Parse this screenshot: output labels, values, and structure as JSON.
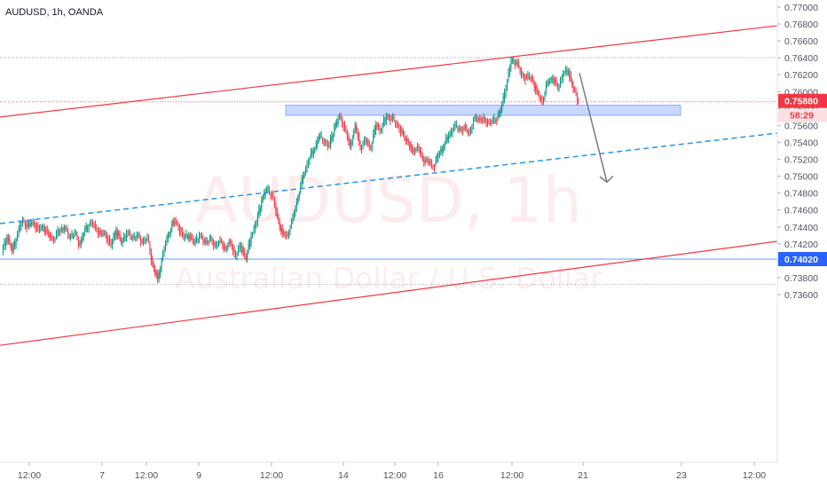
{
  "chart_data": {
    "type": "candlestick",
    "symbol_title": "AUDUSD, 1h, OANDA",
    "watermark_symbol": "AUDUSD, 1h",
    "watermark_description": "Australian Dollar / U.S. Dollar",
    "y_axis": {
      "min": 0.736,
      "max": 0.778,
      "ticks": [
        "0.77000",
        "0.76800",
        "0.76600",
        "0.76400",
        "0.76200",
        "0.76000",
        "0.75800",
        "0.75600",
        "0.75400",
        "0.75200",
        "0.75000",
        "0.74800",
        "0.74600",
        "0.74400",
        "0.74200",
        "0.74000",
        "0.73800",
        "0.73600"
      ]
    },
    "x_axis": {
      "ticks": [
        "12:00",
        "7",
        "12:00",
        "9",
        "12:00",
        "14",
        "12:00",
        "16",
        "12:00",
        "21",
        "23",
        "12:00"
      ]
    },
    "current_price": {
      "label": "0.75880",
      "value": 0.7588,
      "countdown": "58:29",
      "color": "#f23645"
    },
    "level_price": {
      "label": "0.74020",
      "value": 0.7402,
      "color": "#2962ff"
    },
    "dotted_levels": [
      0.764,
      0.7588,
      0.7372
    ],
    "zone": {
      "from": 0.7572,
      "to": 0.7584,
      "color": "#2962ff"
    },
    "channel_upper": {
      "from": 0.757,
      "to": 0.7678,
      "color": "#f23645"
    },
    "channel_lower": {
      "from": 0.73,
      "to": 0.7423,
      "color": "#f23645"
    },
    "channel_mid": {
      "from": 0.7444,
      "to": 0.7551,
      "color": "#2196f3"
    },
    "projection_arrow": {
      "from": 0.7622,
      "to": 0.7493,
      "color": "#787b86"
    },
    "colors": {
      "up": "#089981",
      "down": "#f23645"
    },
    "path": [
      [
        0.741,
        0.7428,
        0.7412,
        0.7432,
        0.7448,
        0.7441,
        0.7446,
        0.7437,
        0.744,
        0.743,
        0.7425,
        0.7435,
        0.7439,
        0.7428,
        0.7433,
        0.7419,
        0.7437,
        0.7445,
        0.744,
        0.7432,
        0.7431,
        0.7418,
        0.7436,
        0.7421,
        0.7433,
        0.7427,
        0.743,
        0.7422,
        0.7428,
        0.7395,
        0.7378,
        0.7409,
        0.743,
        0.7447,
        0.744,
        0.7427,
        0.743,
        0.7421,
        0.743,
        0.7422,
        0.7426,
        0.7418,
        0.7424,
        0.7414,
        0.7422,
        0.7405,
        0.7418,
        0.7402,
        0.743,
        0.7445,
        0.7472,
        0.7485,
        0.7478,
        0.7452,
        0.7432,
        0.743,
        0.7451,
        0.7475,
        0.7501,
        0.7518,
        0.753,
        0.7547,
        0.7541,
        0.7536,
        0.7558,
        0.7571,
        0.7557,
        0.7535,
        0.756,
        0.7533,
        0.7543,
        0.7533,
        0.7561,
        0.7554,
        0.7571,
        0.7568,
        0.7562,
        0.7551,
        0.7542,
        0.7529,
        0.7535,
        0.752,
        0.7518,
        0.751,
        0.7525,
        0.7535,
        0.7548,
        0.7559,
        0.7556,
        0.7557,
        0.7552,
        0.7569,
        0.7568,
        0.7565,
        0.7564,
        0.7566,
        0.7578,
        0.7605,
        0.7636,
        0.7635,
        0.762,
        0.7617,
        0.7616,
        0.7599,
        0.7588,
        0.7611,
        0.7616,
        0.7604,
        0.7621,
        0.7624,
        0.7603,
        0.7588
      ]
    ]
  }
}
